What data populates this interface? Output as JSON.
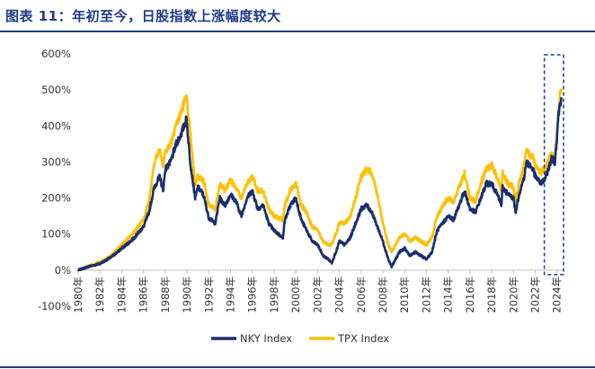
{
  "header": {
    "title": "图表 11：年初至今，日股指数上涨幅度较大"
  },
  "colors": {
    "nky": "#1b2f6e",
    "tpx": "#ffc000",
    "title": "#1f3a8a",
    "highlight": "#1f3a8a"
  },
  "chart_data": {
    "type": "line",
    "title": "图表 11：年初至今，日股指数上涨幅度较大",
    "xlabel": "",
    "ylabel": "",
    "ylim": [
      -100,
      600
    ],
    "xlim": [
      1980,
      2024.6
    ],
    "yticks": [
      -100,
      0,
      100,
      200,
      300,
      400,
      500,
      600
    ],
    "ytick_labels": [
      "-100%",
      "0%",
      "100%",
      "200%",
      "300%",
      "400%",
      "500%",
      "600%"
    ],
    "xticks": [
      1980,
      1982,
      1984,
      1986,
      1988,
      1990,
      1992,
      1994,
      1996,
      1998,
      2000,
      2002,
      2004,
      2006,
      2008,
      2010,
      2012,
      2014,
      2016,
      2018,
      2020,
      2022,
      2024
    ],
    "xtick_labels": [
      "1980年",
      "1982年",
      "1984年",
      "1986年",
      "1988年",
      "1990年",
      "1992年",
      "1994年",
      "1996年",
      "1998年",
      "2000年",
      "2002年",
      "2004年",
      "2006年",
      "2008年",
      "2010年",
      "2012年",
      "2014年",
      "2016年",
      "2018年",
      "2020年",
      "2022年",
      "2024年"
    ],
    "legend_position": "bottom",
    "highlight_range": [
      2023.0,
      2024.6
    ],
    "series": [
      {
        "name": "NKY Index",
        "x": [
          1980.0,
          1981.0,
          1982.0,
          1983.0,
          1984.0,
          1985.0,
          1986.0,
          1986.5,
          1987.0,
          1987.5,
          1987.8,
          1988.0,
          1988.5,
          1989.0,
          1989.5,
          1989.95,
          1990.3,
          1990.75,
          1991.0,
          1991.5,
          1992.0,
          1992.6,
          1993.0,
          1993.5,
          1994.0,
          1994.5,
          1995.0,
          1995.5,
          1996.0,
          1996.5,
          1997.0,
          1997.5,
          1998.0,
          1998.8,
          1999.0,
          1999.5,
          2000.0,
          2000.5,
          2001.0,
          2001.5,
          2002.0,
          2002.5,
          2003.0,
          2003.3,
          2003.8,
          2004.0,
          2004.5,
          2005.0,
          2005.5,
          2006.0,
          2006.5,
          2007.0,
          2007.5,
          2008.0,
          2008.5,
          2008.8,
          2009.0,
          2009.5,
          2010.0,
          2010.5,
          2011.0,
          2011.5,
          2012.0,
          2012.5,
          2013.0,
          2013.5,
          2014.0,
          2014.5,
          2015.0,
          2015.5,
          2016.0,
          2016.5,
          2017.0,
          2017.5,
          2018.0,
          2018.5,
          2018.9,
          2019.0,
          2019.5,
          2020.0,
          2020.2,
          2020.5,
          2020.8,
          2021.0,
          2021.2,
          2021.5,
          2021.8,
          2022.0,
          2022.5,
          2022.8,
          2023.0,
          2023.3,
          2023.5,
          2023.8,
          2024.0,
          2024.1,
          2024.25,
          2024.4
        ],
        "values": [
          0,
          10,
          18,
          35,
          60,
          85,
          120,
          160,
          230,
          260,
          220,
          280,
          300,
          350,
          380,
          420,
          300,
          200,
          230,
          210,
          145,
          130,
          200,
          180,
          210,
          190,
          150,
          200,
          220,
          170,
          180,
          130,
          110,
          90,
          140,
          180,
          200,
          140,
          110,
          80,
          70,
          40,
          30,
          20,
          60,
          80,
          70,
          90,
          130,
          170,
          180,
          160,
          120,
          80,
          30,
          10,
          20,
          50,
          60,
          40,
          50,
          40,
          30,
          50,
          110,
          130,
          150,
          140,
          180,
          220,
          170,
          160,
          200,
          240,
          240,
          210,
          180,
          230,
          210,
          200,
          160,
          210,
          240,
          260,
          300,
          290,
          280,
          260,
          240,
          250,
          260,
          290,
          310,
          300,
          370,
          420,
          460,
          480
        ]
      },
      {
        "name": "TPX Index",
        "x": [
          1980.0,
          1981.0,
          1982.0,
          1983.0,
          1984.0,
          1985.0,
          1986.0,
          1986.5,
          1987.0,
          1987.5,
          1987.8,
          1988.0,
          1988.5,
          1989.0,
          1989.5,
          1989.95,
          1990.3,
          1990.75,
          1991.0,
          1991.5,
          1992.0,
          1992.6,
          1993.0,
          1993.5,
          1994.0,
          1994.5,
          1995.0,
          1995.5,
          1996.0,
          1996.5,
          1997.0,
          1997.5,
          1998.0,
          1998.8,
          1999.0,
          1999.5,
          2000.0,
          2000.5,
          2001.0,
          2001.5,
          2002.0,
          2002.5,
          2003.0,
          2003.3,
          2003.8,
          2004.0,
          2004.5,
          2005.0,
          2005.5,
          2006.0,
          2006.5,
          2007.0,
          2007.5,
          2008.0,
          2008.5,
          2008.8,
          2009.0,
          2009.5,
          2010.0,
          2010.5,
          2011.0,
          2011.5,
          2012.0,
          2012.5,
          2013.0,
          2013.5,
          2014.0,
          2014.5,
          2015.0,
          2015.5,
          2016.0,
          2016.5,
          2017.0,
          2017.5,
          2018.0,
          2018.5,
          2018.9,
          2019.0,
          2019.5,
          2020.0,
          2020.2,
          2020.5,
          2020.8,
          2021.0,
          2021.2,
          2021.5,
          2021.8,
          2022.0,
          2022.5,
          2022.8,
          2023.0,
          2023.3,
          2023.5,
          2023.8,
          2024.0,
          2024.1,
          2024.25,
          2024.4
        ],
        "values": [
          0,
          12,
          22,
          40,
          70,
          100,
          140,
          190,
          300,
          340,
          290,
          330,
          350,
          400,
          440,
          490,
          380,
          240,
          260,
          250,
          180,
          170,
          240,
          220,
          250,
          230,
          200,
          240,
          260,
          220,
          220,
          170,
          150,
          140,
          180,
          220,
          240,
          180,
          160,
          120,
          110,
          80,
          70,
          70,
          110,
          130,
          130,
          150,
          200,
          260,
          280,
          270,
          210,
          130,
          70,
          50,
          60,
          90,
          100,
          80,
          90,
          80,
          70,
          90,
          150,
          180,
          200,
          190,
          230,
          270,
          200,
          190,
          240,
          280,
          290,
          260,
          220,
          270,
          240,
          230,
          190,
          240,
          270,
          300,
          330,
          320,
          310,
          290,
          270,
          280,
          290,
          310,
          320,
          310,
          380,
          430,
          480,
          500
        ]
      }
    ]
  }
}
